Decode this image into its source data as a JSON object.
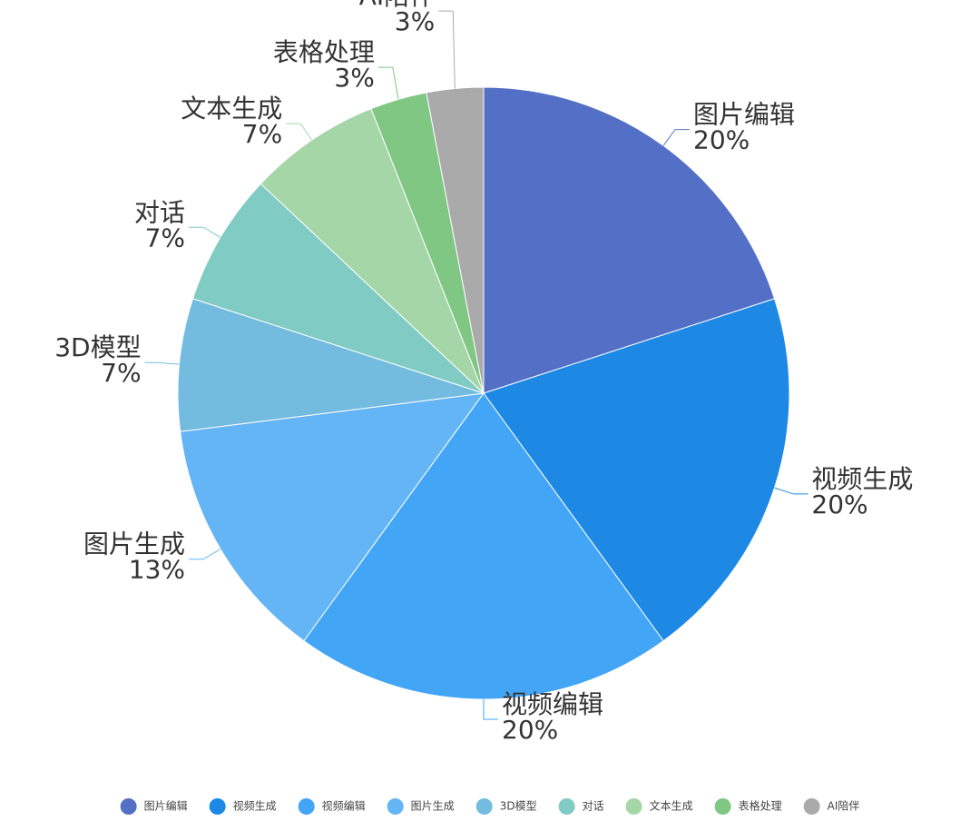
{
  "chart_data": {
    "type": "pie",
    "categories": [
      "图片编辑",
      "视频生成",
      "视频编辑",
      "图片生成",
      "3D模型",
      "对话",
      "文本生成",
      "表格处理",
      "AI陪伴"
    ],
    "values": [
      20,
      20,
      20,
      13,
      7,
      7,
      7,
      3,
      3
    ],
    "value_labels": [
      "20%",
      "20%",
      "20%",
      "13%",
      "7%",
      "7%",
      "7%",
      "3%",
      "3%"
    ],
    "colors": [
      "#5470c6",
      "#1e88e5",
      "#42a5f5",
      "#64b5f6",
      "#74bcdf",
      "#80cbc4",
      "#a5d6a7",
      "#81c784",
      "#aaaaaa"
    ],
    "legend": "bottom"
  }
}
